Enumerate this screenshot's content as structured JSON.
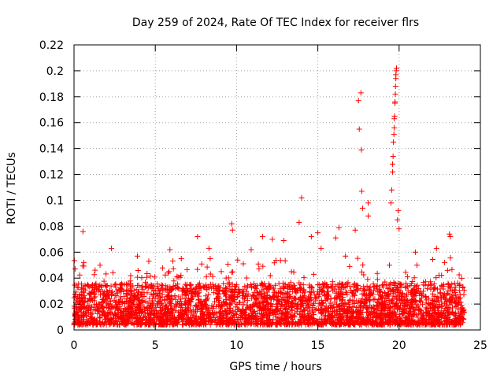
{
  "chart_data": {
    "type": "scatter",
    "title": "Day 259 of 2024, Rate Of TEC Index for receiver flrs",
    "xlabel": "GPS time / hours",
    "ylabel": "ROTI / TECUs",
    "xlim": [
      0,
      25
    ],
    "ylim": [
      0,
      0.22
    ],
    "x_ticks": [
      0,
      5,
      10,
      15,
      20,
      25
    ],
    "x_tick_labels": [
      "0",
      "5",
      "10",
      "15",
      "20",
      "25"
    ],
    "y_ticks": [
      0,
      0.02,
      0.04,
      0.06,
      0.08,
      0.1,
      0.12,
      0.14,
      0.16,
      0.18,
      0.2,
      0.22
    ],
    "y_tick_labels": [
      "0",
      "0.02",
      "0.04",
      "0.06",
      "0.08",
      "0.1",
      "0.12",
      "0.14",
      "0.16",
      "0.18",
      "0.2",
      "0.22"
    ],
    "grid": true,
    "marker": "+",
    "color": "#ff0000",
    "series": [
      {
        "name": "flrs",
        "points": [
          [
            0.55,
            0.076
          ],
          [
            2.3,
            0.063
          ],
          [
            3.9,
            0.057
          ],
          [
            5.9,
            0.062
          ],
          [
            7.6,
            0.072
          ],
          [
            9.7,
            0.082
          ],
          [
            9.75,
            0.077
          ],
          [
            11.6,
            0.072
          ],
          [
            12.2,
            0.07
          ],
          [
            13.85,
            0.083
          ],
          [
            14.0,
            0.102
          ],
          [
            14.6,
            0.072
          ],
          [
            15.0,
            0.075
          ],
          [
            16.3,
            0.079
          ],
          [
            17.3,
            0.077
          ],
          [
            17.5,
            0.177
          ],
          [
            17.55,
            0.155
          ],
          [
            17.65,
            0.183
          ],
          [
            17.68,
            0.139
          ],
          [
            17.7,
            0.107
          ],
          [
            17.75,
            0.094
          ],
          [
            18.1,
            0.088
          ],
          [
            18.1,
            0.098
          ],
          [
            19.5,
            0.098
          ],
          [
            19.55,
            0.108
          ],
          [
            19.6,
            0.122
          ],
          [
            19.6,
            0.128
          ],
          [
            19.63,
            0.134
          ],
          [
            19.65,
            0.145
          ],
          [
            19.68,
            0.151
          ],
          [
            19.7,
            0.156
          ],
          [
            19.7,
            0.163
          ],
          [
            19.72,
            0.165
          ],
          [
            19.74,
            0.175
          ],
          [
            19.75,
            0.176
          ],
          [
            19.77,
            0.182
          ],
          [
            19.78,
            0.188
          ],
          [
            19.8,
            0.194
          ],
          [
            19.8,
            0.197
          ],
          [
            19.82,
            0.2
          ],
          [
            19.84,
            0.202
          ],
          [
            19.9,
            0.085
          ],
          [
            19.95,
            0.092
          ],
          [
            20.0,
            0.078
          ],
          [
            23.1,
            0.074
          ],
          [
            23.15,
            0.072
          ],
          [
            22.3,
            0.063
          ],
          [
            22.8,
            0.052
          ],
          [
            21.1,
            0.05
          ],
          [
            21.0,
            0.06
          ],
          [
            16.1,
            0.071
          ],
          [
            16.7,
            0.057
          ],
          [
            15.2,
            0.063
          ],
          [
            12.9,
            0.069
          ],
          [
            10.9,
            0.062
          ],
          [
            8.3,
            0.063
          ],
          [
            6.6,
            0.055
          ],
          [
            4.6,
            0.053
          ],
          [
            1.6,
            0.05
          ],
          [
            0.6,
            0.052
          ]
        ]
      }
    ]
  }
}
